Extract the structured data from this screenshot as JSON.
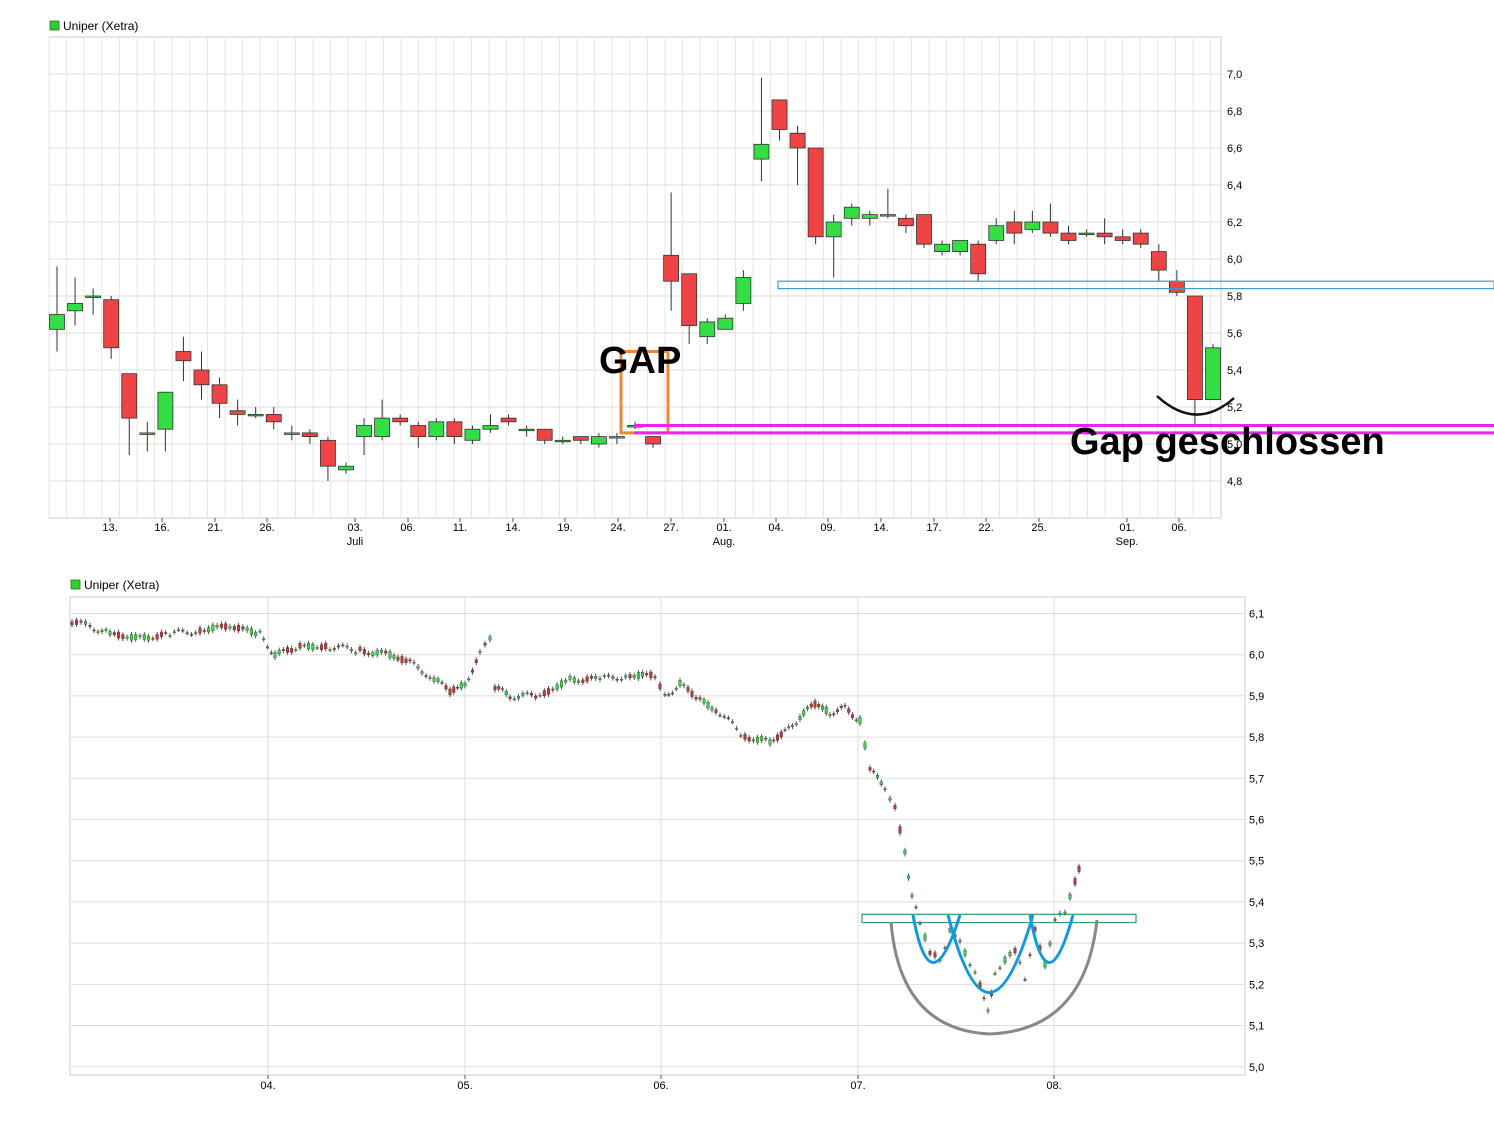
{
  "chart_data": [
    {
      "type": "candlestick",
      "legend": "Uniper (Xetra)",
      "legend_color": "#33cc33",
      "up_color": "#33dd44",
      "down_color": "#ee4444",
      "ylim": [
        4.6,
        7.2
      ],
      "y_ticks": [
        "7,0",
        "6,8",
        "6,6",
        "6,4",
        "6,2",
        "6,0",
        "5,8",
        "5,6",
        "5,4",
        "5,2",
        "5,0",
        "4,8"
      ],
      "x_ticks": [
        {
          "label": "13.",
          "sub": ""
        },
        {
          "label": "16.",
          "sub": ""
        },
        {
          "label": "21.",
          "sub": ""
        },
        {
          "label": "26.",
          "sub": ""
        },
        {
          "label": "03.",
          "sub": "Juli"
        },
        {
          "label": "06.",
          "sub": ""
        },
        {
          "label": "11.",
          "sub": ""
        },
        {
          "label": "14.",
          "sub": ""
        },
        {
          "label": "19.",
          "sub": ""
        },
        {
          "label": "24.",
          "sub": ""
        },
        {
          "label": "27.",
          "sub": ""
        },
        {
          "label": "01.",
          "sub": "Aug."
        },
        {
          "label": "04.",
          "sub": ""
        },
        {
          "label": "09.",
          "sub": ""
        },
        {
          "label": "14.",
          "sub": ""
        },
        {
          "label": "17.",
          "sub": ""
        },
        {
          "label": "22.",
          "sub": ""
        },
        {
          "label": "25.",
          "sub": ""
        },
        {
          "label": "01.",
          "sub": "Sep."
        },
        {
          "label": "06.",
          "sub": ""
        }
      ],
      "candles": [
        [
          5.62,
          5.7,
          5.96,
          5.5
        ],
        [
          5.72,
          5.76,
          5.9,
          5.64
        ],
        [
          5.8,
          5.8,
          5.84,
          5.7
        ],
        [
          5.78,
          5.52,
          5.8,
          5.46
        ],
        [
          5.38,
          5.14,
          5.38,
          4.94
        ],
        [
          5.06,
          5.06,
          5.12,
          4.96
        ],
        [
          5.08,
          5.28,
          5.28,
          4.96
        ],
        [
          5.5,
          5.45,
          5.58,
          5.34
        ],
        [
          5.4,
          5.32,
          5.5,
          5.24
        ],
        [
          5.32,
          5.22,
          5.36,
          5.14
        ],
        [
          5.18,
          5.16,
          5.24,
          5.1
        ],
        [
          5.16,
          5.16,
          5.2,
          5.14
        ],
        [
          5.16,
          5.12,
          5.2,
          5.08
        ],
        [
          5.06,
          5.06,
          5.1,
          5.02
        ],
        [
          5.06,
          5.04,
          5.08,
          5.0
        ],
        [
          5.02,
          4.88,
          5.04,
          4.8
        ],
        [
          4.86,
          4.88,
          4.9,
          4.84
        ],
        [
          5.04,
          5.1,
          5.14,
          4.94
        ],
        [
          5.04,
          5.14,
          5.24,
          5.02
        ],
        [
          5.14,
          5.12,
          5.16,
          5.1
        ],
        [
          5.1,
          5.04,
          5.12,
          4.98
        ],
        [
          5.04,
          5.12,
          5.14,
          5.02
        ],
        [
          5.12,
          5.04,
          5.14,
          5.0
        ],
        [
          5.02,
          5.08,
          5.1,
          5.0
        ],
        [
          5.08,
          5.1,
          5.16,
          5.06
        ],
        [
          5.14,
          5.12,
          5.16,
          5.1
        ],
        [
          5.08,
          5.08,
          5.1,
          5.04
        ],
        [
          5.08,
          5.02,
          5.08,
          5.0
        ],
        [
          5.02,
          5.02,
          5.04,
          5.0
        ],
        [
          5.04,
          5.02,
          5.04,
          5.0
        ],
        [
          5.0,
          5.04,
          5.06,
          4.98
        ],
        [
          5.04,
          5.04,
          5.06,
          5.0
        ],
        [
          5.1,
          5.1,
          5.12,
          5.08
        ],
        [
          5.04,
          5.0,
          5.04,
          4.98
        ],
        [
          6.02,
          5.88,
          6.36,
          5.72
        ],
        [
          5.92,
          5.64,
          5.92,
          5.54
        ],
        [
          5.58,
          5.66,
          5.68,
          5.54
        ],
        [
          5.62,
          5.68,
          5.7,
          5.62
        ],
        [
          5.76,
          5.9,
          5.94,
          5.72
        ],
        [
          6.54,
          6.62,
          6.98,
          6.42
        ],
        [
          6.86,
          6.7,
          6.86,
          6.64
        ],
        [
          6.68,
          6.6,
          6.72,
          6.4
        ],
        [
          6.6,
          6.12,
          6.6,
          6.08
        ],
        [
          6.12,
          6.2,
          6.24,
          5.9
        ],
        [
          6.22,
          6.28,
          6.3,
          6.18
        ],
        [
          6.22,
          6.24,
          6.26,
          6.18
        ],
        [
          6.24,
          6.24,
          6.38,
          6.22
        ],
        [
          6.22,
          6.18,
          6.24,
          6.14
        ],
        [
          6.24,
          6.08,
          6.24,
          6.06
        ],
        [
          6.04,
          6.08,
          6.1,
          6.02
        ],
        [
          6.04,
          6.1,
          6.1,
          6.02
        ],
        [
          6.08,
          5.92,
          6.1,
          5.88
        ],
        [
          6.1,
          6.18,
          6.22,
          6.08
        ],
        [
          6.2,
          6.14,
          6.26,
          6.08
        ],
        [
          6.16,
          6.2,
          6.26,
          6.14
        ],
        [
          6.2,
          6.14,
          6.3,
          6.12
        ],
        [
          6.14,
          6.1,
          6.18,
          6.08
        ],
        [
          6.14,
          6.14,
          6.16,
          6.12
        ],
        [
          6.14,
          6.12,
          6.22,
          6.08
        ],
        [
          6.12,
          6.1,
          6.16,
          6.08
        ],
        [
          6.14,
          6.08,
          6.16,
          6.06
        ],
        [
          6.04,
          5.94,
          6.08,
          5.88
        ],
        [
          5.88,
          5.82,
          5.94,
          5.8
        ],
        [
          5.8,
          5.24,
          5.8,
          5.1
        ],
        [
          5.24,
          5.52,
          5.54,
          5.24
        ]
      ],
      "annotations": [
        {
          "text": "GAP",
          "color": "#000000"
        },
        {
          "text": "Gap geschlossen",
          "color": "#000000"
        }
      ],
      "gap_box": {
        "price_low": 5.06,
        "price_high": 5.5,
        "color": "#ee8833"
      },
      "support_band_blue": {
        "price_low": 5.84,
        "price_high": 5.88,
        "color": "#4499cc"
      },
      "support_band_magenta": {
        "price_low": 5.06,
        "price_high": 5.1,
        "color": "#ee22ee"
      }
    },
    {
      "type": "candlestick",
      "legend": "Uniper (Xetra)",
      "legend_color": "#33cc33",
      "ylim": [
        4.98,
        6.14
      ],
      "y_ticks": [
        "6,1",
        "6,0",
        "5,9",
        "5,8",
        "5,7",
        "5,6",
        "5,5",
        "5,4",
        "5,3",
        "5,2",
        "5,1",
        "5,0"
      ],
      "x_ticks": [
        "04.",
        "05.",
        "06.",
        "07.",
        "08."
      ],
      "resistance_band": {
        "price_low": 5.35,
        "price_high": 5.37,
        "color": "#339966"
      },
      "cup_color": "#888888",
      "inner_cups_color": "#1199dd"
    }
  ]
}
